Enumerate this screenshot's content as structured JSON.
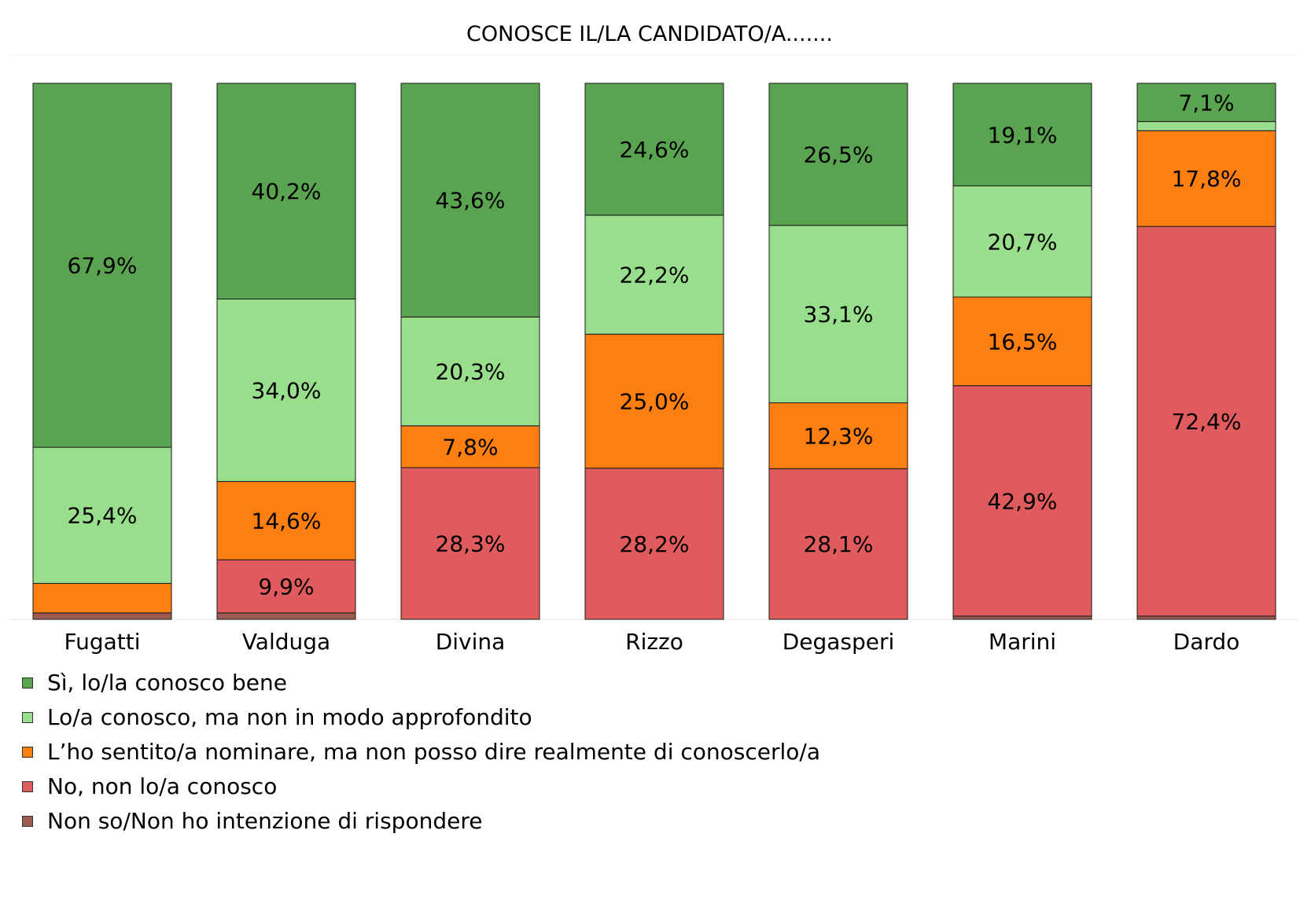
{
  "chart_data": {
    "type": "bar",
    "stacked": true,
    "title": "CONOSCE IL/LA CANDIDATO/A.......",
    "xlabel": "",
    "ylabel": "",
    "ylim": [
      0,
      100
    ],
    "categories": [
      "Fugatti",
      "Valduga",
      "Divina",
      "Rizzo",
      "Degasperi",
      "Marini",
      "Dardo"
    ],
    "series": [
      {
        "name": "Non so/Non ho intenzione di rispondere",
        "color": "#9e5b50",
        "values": [
          1.2,
          1.2,
          0,
          0,
          0,
          0.6,
          0.6
        ],
        "labels": [
          "",
          "",
          "",
          "",
          "",
          "",
          ""
        ]
      },
      {
        "name": "No, non lo/a conosco",
        "color": "#e05b5d",
        "values": [
          0,
          9.9,
          28.3,
          28.2,
          28.1,
          42.9,
          72.4
        ],
        "labels": [
          "",
          "9,9%",
          "28,3%",
          "28,2%",
          "28,1%",
          "42,9%",
          "72,4%"
        ]
      },
      {
        "name": "L’ho sentito/a nominare, ma non posso dire realmente di conoscerlo/a",
        "color": "#fd7f12",
        "values": [
          5.5,
          14.6,
          7.8,
          25.0,
          12.3,
          16.5,
          17.8
        ],
        "labels": [
          "",
          "14,6%",
          "7,8%",
          "25,0%",
          "12,3%",
          "16,5%",
          "17,8%"
        ]
      },
      {
        "name": "Lo/a conosco, ma non in modo approfondito",
        "color": "#99de8c",
        "values": [
          25.4,
          34.0,
          20.3,
          22.2,
          33.1,
          20.7,
          1.7
        ],
        "labels": [
          "25,4%",
          "34,0%",
          "20,3%",
          "22,2%",
          "33,1%",
          "20,7%",
          ""
        ]
      },
      {
        "name": "Sì, lo/la conosco bene",
        "color": "#5aa351",
        "values": [
          67.9,
          40.2,
          43.6,
          24.6,
          26.5,
          19.1,
          7.1
        ],
        "labels": [
          "67,9%",
          "40,2%",
          "43,6%",
          "24,6%",
          "26,5%",
          "19,1%",
          "7,1%"
        ]
      }
    ],
    "grid": false,
    "legend_position": "bottom-left"
  },
  "legend": [
    {
      "label": "Sì, lo/la conosco bene",
      "color": "#5aa351"
    },
    {
      "label": "Lo/a conosco, ma non in modo approfondito",
      "color": "#99de8c"
    },
    {
      "label": "L’ho sentito/a nominare, ma non posso dire realmente di conoscerlo/a",
      "color": "#fd7f12"
    },
    {
      "label": "No, non lo/a conosco",
      "color": "#e05b5d"
    },
    {
      "label": "Non so/Non ho intenzione di rispondere",
      "color": "#9e5b50"
    }
  ]
}
